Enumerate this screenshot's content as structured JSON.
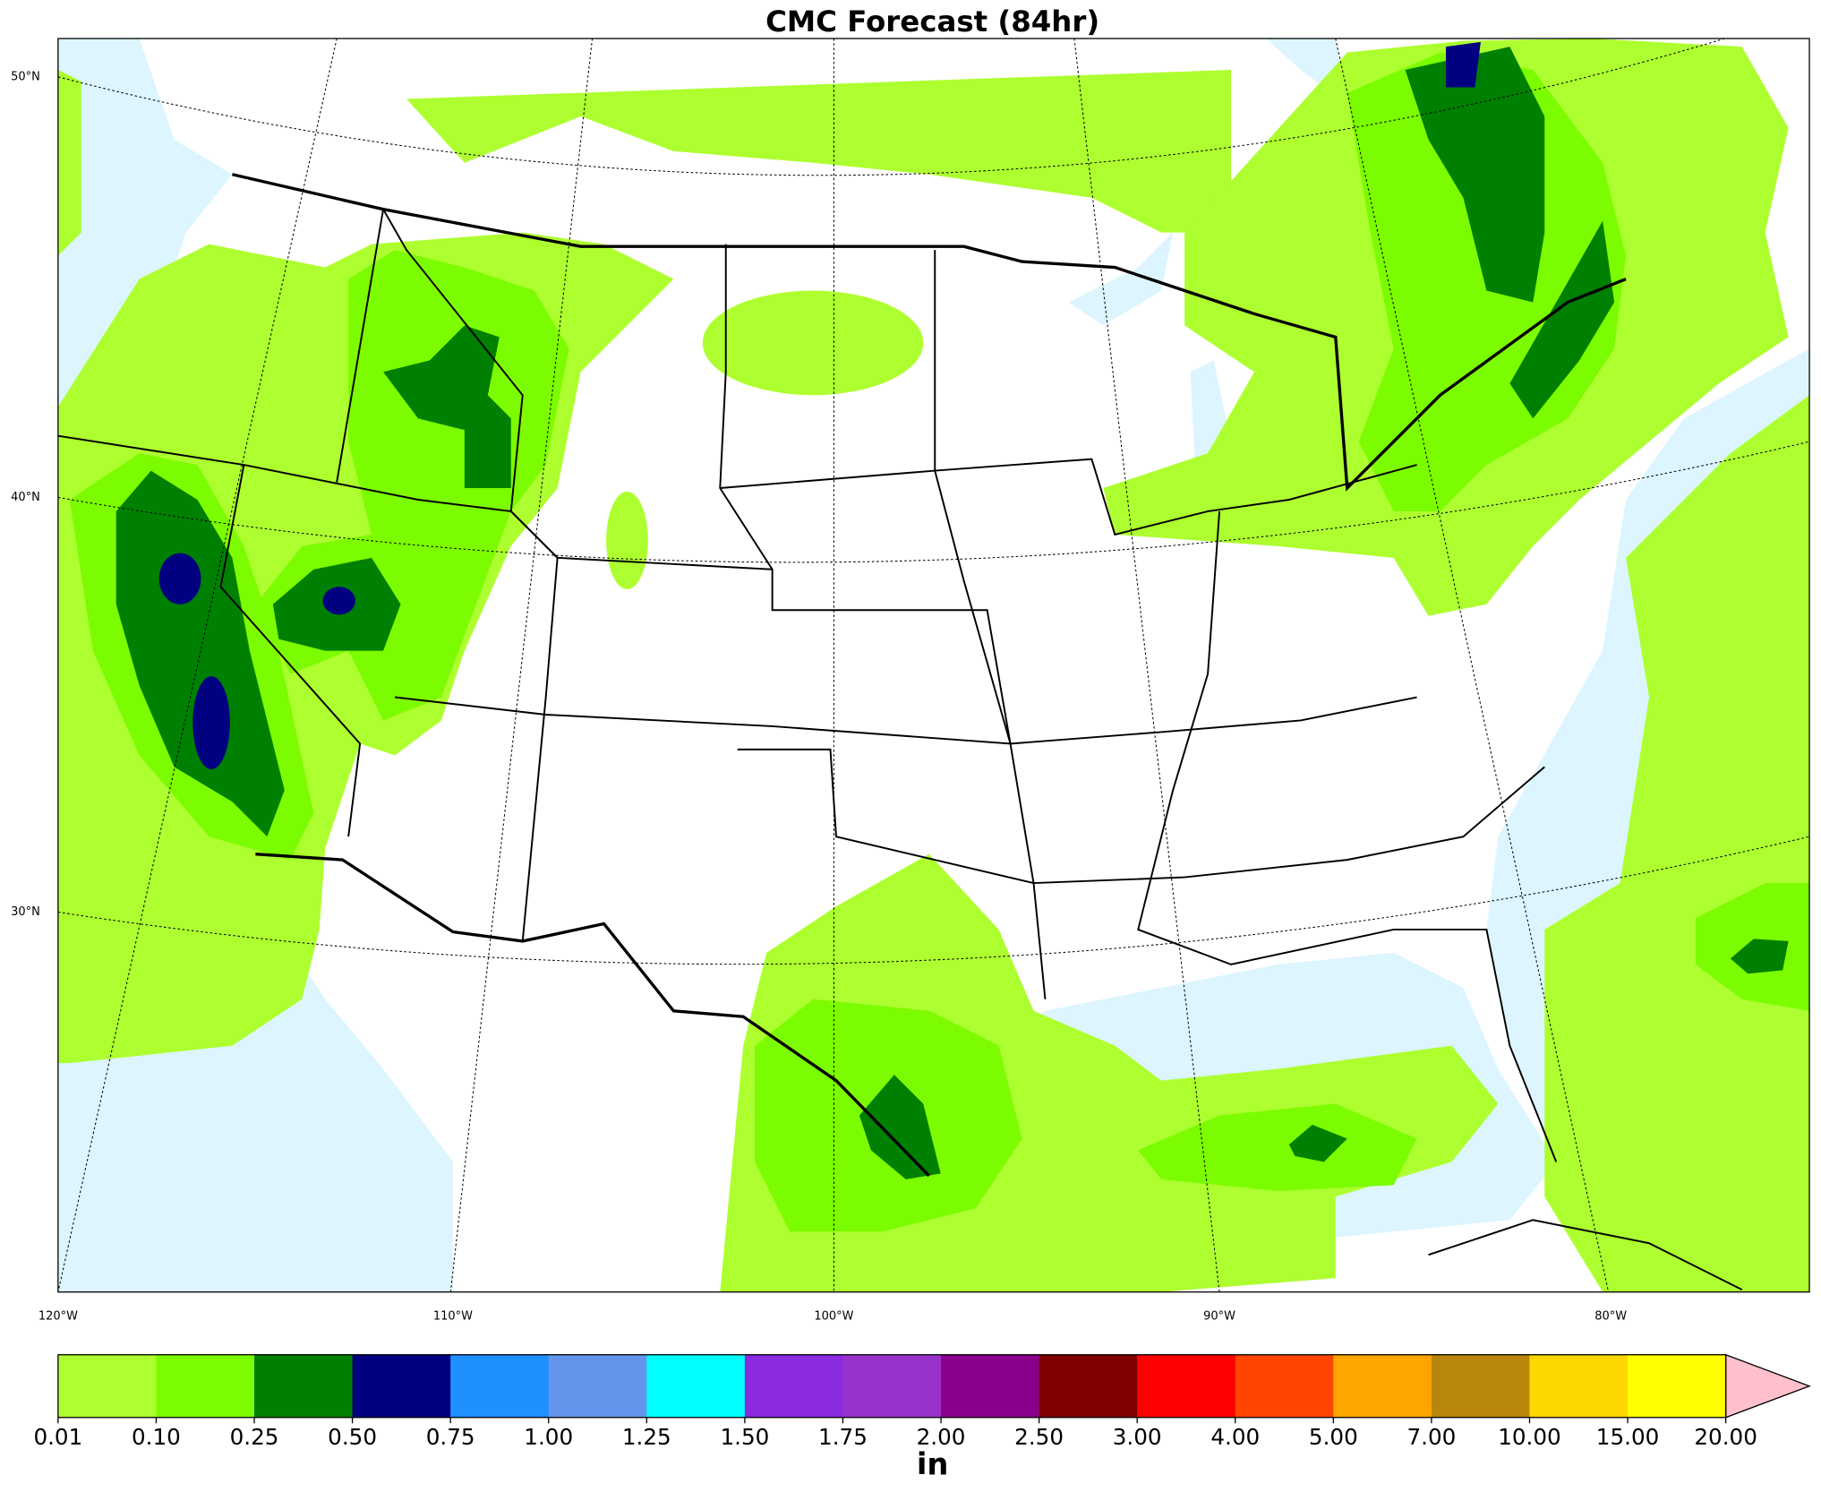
{
  "title": "CMC Forecast (84hr)",
  "map": {
    "lat_labels": [
      "50°N",
      "40°N",
      "30°N"
    ],
    "lon_labels": [
      "120°W",
      "110°W",
      "100°W",
      "90°W",
      "80°W"
    ]
  },
  "colorbar": {
    "unit": "in",
    "levels": [
      {
        "value": 0.01,
        "label": "0.01"
      },
      {
        "value": 0.1,
        "label": "0.10"
      },
      {
        "value": 0.25,
        "label": "0.25"
      },
      {
        "value": 0.5,
        "label": "0.50"
      },
      {
        "value": 0.75,
        "label": "0.75"
      },
      {
        "value": 1,
        "label": "1.00"
      },
      {
        "value": 1.25,
        "label": "1.25"
      },
      {
        "value": 1.5,
        "label": "1.50"
      },
      {
        "value": 1.75,
        "label": "1.75"
      },
      {
        "value": 2,
        "label": "2.00"
      },
      {
        "value": 2.5,
        "label": "2.50"
      },
      {
        "value": 3,
        "label": "3.00"
      },
      {
        "value": 4,
        "label": "4.00"
      },
      {
        "value": 5,
        "label": "5.00"
      },
      {
        "value": 7,
        "label": "7.00"
      },
      {
        "value": 10,
        "label": "10.00"
      },
      {
        "value": 15,
        "label": "15.00"
      },
      {
        "value": 20,
        "label": "20.00"
      }
    ],
    "colors": [
      "#adff2f",
      "#7cfc00",
      "#008000",
      "#000080",
      "#1e90ff",
      "#6495ed",
      "#00ffff",
      "#8a2be2",
      "#9932cc",
      "#8b008b",
      "#800000",
      "#ff0000",
      "#ff4500",
      "#ffa500",
      "#b8860b",
      "#ffd700",
      "#ffff00"
    ],
    "extend_color": "#ffc0cb"
  }
}
